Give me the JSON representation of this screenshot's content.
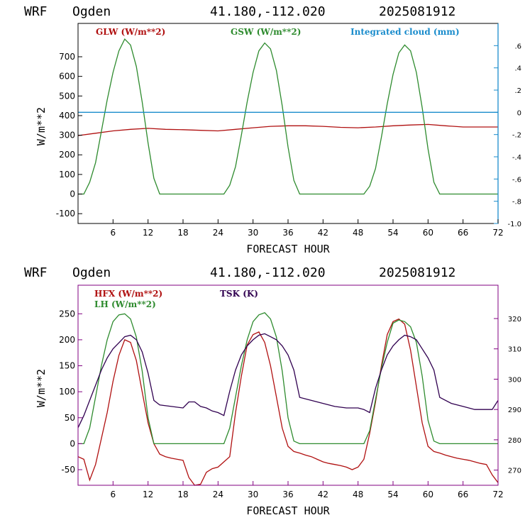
{
  "colors": {
    "red": "#b01010",
    "green": "#2e8b2e",
    "blue": "#1a8ccc",
    "purple": "#300050",
    "axis_top_right": "#1a8ccc",
    "axis_bottom": "#800080"
  },
  "chart_data": [
    {
      "type": "line",
      "header": {
        "model": "WRF",
        "station": "Ogden",
        "coords": "41.180,-112.020",
        "run": "2025081912"
      },
      "xlabel": "FORECAST HOUR",
      "ylabel": "W/m**2",
      "xlim": [
        0,
        72
      ],
      "ylim": [
        -150,
        870
      ],
      "y2lim": [
        -1.0,
        0.8
      ],
      "x_ticks": [
        "6",
        "12",
        "18",
        "24",
        "30",
        "36",
        "42",
        "48",
        "54",
        "60",
        "66",
        "72"
      ],
      "y_ticks": [
        "-100",
        "0",
        "100",
        "200",
        "300",
        "400",
        "500",
        "600",
        "700"
      ],
      "y2_ticks": [
        ".6",
        ".4",
        ".2",
        "0",
        "-.2",
        "-.4",
        "-.6",
        "-.8",
        "-1.0"
      ],
      "legend": [
        "GLW (W/m**2)",
        "GSW (W/m**2)",
        "Integrated cloud (mm)"
      ],
      "series": [
        {
          "name": "GLW (W/m**2)",
          "axis": "left",
          "x": [
            0,
            3,
            6,
            9,
            12,
            15,
            18,
            21,
            24,
            27,
            30,
            33,
            36,
            39,
            42,
            45,
            48,
            51,
            54,
            57,
            60,
            63,
            66,
            69,
            72
          ],
          "values": [
            298,
            310,
            322,
            330,
            335,
            330,
            328,
            325,
            322,
            330,
            338,
            345,
            348,
            348,
            345,
            340,
            338,
            342,
            348,
            352,
            355,
            348,
            342,
            342,
            342
          ]
        },
        {
          "name": "GSW (W/m**2)",
          "axis": "left",
          "x": [
            0,
            1,
            2,
            3,
            4,
            5,
            6,
            7,
            8,
            9,
            10,
            11,
            12,
            13,
            14,
            24,
            25,
            26,
            27,
            28,
            29,
            30,
            31,
            32,
            33,
            34,
            35,
            36,
            37,
            38,
            48,
            49,
            50,
            51,
            52,
            53,
            54,
            55,
            56,
            57,
            58,
            59,
            60,
            61,
            62,
            72
          ],
          "values": [
            0,
            0,
            60,
            160,
            320,
            480,
            620,
            730,
            790,
            760,
            650,
            470,
            260,
            80,
            0,
            0,
            0,
            45,
            140,
            300,
            470,
            620,
            730,
            770,
            740,
            630,
            450,
            240,
            70,
            0,
            0,
            0,
            40,
            130,
            290,
            460,
            610,
            720,
            760,
            730,
            620,
            440,
            230,
            60,
            0,
            0
          ]
        },
        {
          "name": "Integrated cloud (mm)",
          "axis": "right",
          "x": [
            0,
            72
          ],
          "values": [
            0,
            0
          ]
        }
      ]
    },
    {
      "type": "line",
      "header": {
        "model": "WRF",
        "station": "Ogden",
        "coords": "41.180,-112.020",
        "run": "2025081912"
      },
      "xlabel": "FORECAST HOUR",
      "ylabel": "W/m**2",
      "xlim": [
        0,
        72
      ],
      "ylim": [
        -80,
        305
      ],
      "y2lim": [
        265,
        331
      ],
      "x_ticks": [
        "6",
        "12",
        "18",
        "24",
        "30",
        "36",
        "42",
        "48",
        "54",
        "60",
        "66",
        "72"
      ],
      "y_ticks": [
        "-50",
        "0",
        "50",
        "100",
        "150",
        "200",
        "250"
      ],
      "y2_ticks": [
        "270",
        "280",
        "290",
        "300",
        "310",
        "320"
      ],
      "legend": [
        "HFX (W/m**2)",
        "LH  (W/m**2)",
        "TSK (K)"
      ],
      "series": [
        {
          "name": "HFX (W/m**2)",
          "axis": "left",
          "x": [
            0,
            1,
            2,
            3,
            4,
            5,
            6,
            7,
            8,
            9,
            10,
            11,
            12,
            13,
            14,
            15,
            16,
            17,
            18,
            19,
            20,
            21,
            22,
            23,
            24,
            25,
            26,
            27,
            28,
            29,
            30,
            31,
            32,
            33,
            34,
            35,
            36,
            37,
            38,
            39,
            40,
            41,
            42,
            43,
            44,
            45,
            46,
            47,
            48,
            49,
            50,
            51,
            52,
            53,
            54,
            55,
            56,
            57,
            58,
            59,
            60,
            61,
            62,
            63,
            64,
            65,
            66,
            67,
            68,
            69,
            70,
            71,
            72
          ],
          "values": [
            -25,
            -30,
            -70,
            -40,
            10,
            60,
            120,
            170,
            200,
            195,
            160,
            100,
            40,
            0,
            -20,
            -25,
            -28,
            -30,
            -32,
            -65,
            -80,
            -78,
            -55,
            -48,
            -45,
            -35,
            -25,
            60,
            130,
            190,
            210,
            215,
            195,
            150,
            90,
            30,
            -5,
            -15,
            -18,
            -22,
            -25,
            -30,
            -35,
            -38,
            -40,
            -42,
            -45,
            -50,
            -45,
            -30,
            20,
            80,
            150,
            210,
            235,
            240,
            230,
            180,
            110,
            40,
            -5,
            -15,
            -18,
            -22,
            -25,
            -28,
            -30,
            -32,
            -35,
            -38,
            -40,
            -60,
            -75
          ]
        },
        {
          "name": "LH  (W/m**2)",
          "axis": "left",
          "x": [
            0,
            1,
            2,
            3,
            4,
            5,
            6,
            7,
            8,
            9,
            10,
            11,
            12,
            13,
            14,
            24,
            25,
            26,
            27,
            28,
            29,
            30,
            31,
            32,
            33,
            34,
            35,
            36,
            37,
            38,
            48,
            49,
            50,
            51,
            52,
            53,
            54,
            55,
            56,
            57,
            58,
            59,
            60,
            61,
            62,
            72
          ],
          "values": [
            0,
            0,
            30,
            90,
            150,
            200,
            235,
            248,
            250,
            240,
            205,
            140,
            50,
            0,
            0,
            0,
            0,
            30,
            90,
            150,
            200,
            235,
            248,
            252,
            240,
            205,
            140,
            50,
            5,
            0,
            0,
            0,
            25,
            85,
            145,
            195,
            232,
            238,
            235,
            225,
            195,
            130,
            45,
            5,
            0,
            0
          ]
        },
        {
          "name": "TSK (K)",
          "axis": "right",
          "x": [
            0,
            1,
            2,
            3,
            4,
            5,
            6,
            7,
            8,
            9,
            10,
            11,
            12,
            13,
            14,
            16,
            18,
            19,
            20,
            21,
            22,
            23,
            24,
            25,
            26,
            27,
            28,
            29,
            30,
            31,
            32,
            33,
            34,
            35,
            36,
            37,
            38,
            40,
            42,
            44,
            46,
            48,
            49,
            50,
            51,
            52,
            53,
            54,
            55,
            56,
            57,
            58,
            59,
            60,
            61,
            62,
            64,
            66,
            68,
            70,
            71,
            72
          ],
          "values": [
            284,
            288,
            293,
            298,
            303,
            307,
            310,
            312,
            314,
            314.5,
            313,
            309,
            302,
            293,
            291.5,
            291,
            290.5,
            292.5,
            292.5,
            291,
            290.5,
            289.5,
            289,
            288,
            296,
            303,
            308,
            311,
            313,
            314.5,
            315,
            314,
            313,
            311,
            308,
            303,
            294,
            293,
            292,
            291,
            290.5,
            290.5,
            290,
            289,
            297,
            303,
            308,
            311,
            313,
            314.5,
            314,
            313,
            310,
            307,
            303,
            294,
            292,
            291,
            290,
            290,
            290,
            293
          ]
        }
      ]
    }
  ]
}
